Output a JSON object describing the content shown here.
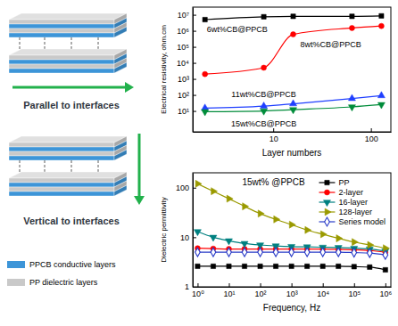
{
  "diagram": {
    "panels": [
      {
        "label": "Parallel to interfaces"
      },
      {
        "label": "Vertical to interfaces"
      }
    ],
    "legend": [
      {
        "label": "PPCB conductive layers",
        "color": "#3d95d8"
      },
      {
        "label": "PP dielectric layers",
        "color": "#c9c9c9"
      }
    ]
  },
  "chart_data": [
    {
      "type": "line",
      "x_label": "Layer numbers",
      "y_label": "Electrical resistivity, ohm.cm",
      "log": true,
      "x": [
        2,
        8,
        16,
        64,
        128
      ],
      "xlim": [
        1.5,
        160
      ],
      "ylim": [
        0.5,
        30000000
      ],
      "xticks": [
        10,
        100
      ],
      "yticks": [
        {
          "value": 10,
          "label": "10¹"
        },
        {
          "value": 100,
          "label": "10²"
        },
        {
          "value": 1000,
          "label": "10³"
        },
        {
          "value": 10000,
          "label": "10⁴"
        },
        {
          "value": 100000,
          "label": "10⁵"
        },
        {
          "value": 1000000,
          "label": "10⁶"
        },
        {
          "value": 10000000,
          "label": "10⁷"
        }
      ],
      "series": [
        {
          "name": "6wt%CB@PPCB",
          "color": "#000000",
          "marker": "square",
          "values": [
            5000000,
            7500000,
            8000000,
            8000000,
            8500000
          ]
        },
        {
          "name": "8wt%CB@PPCB",
          "color": "#ff0000",
          "marker": "circle",
          "values": [
            2000,
            5000,
            600000,
            1500000,
            2000000
          ]
        },
        {
          "name": "11wt%CB@PPCB",
          "color": "#1f3fff",
          "marker": "triangle-up",
          "values": [
            15,
            20,
            28,
            60,
            90
          ]
        },
        {
          "name": "15wt%CB@PPCB",
          "color": "#008c3a",
          "marker": "triangle-down",
          "values": [
            9,
            10,
            12,
            18,
            25
          ]
        }
      ]
    },
    {
      "type": "line",
      "title": "15wt% @PPCB",
      "x_label": "Frequency, Hz",
      "y_label": "Dielectric permittivity",
      "log": true,
      "legend": "top-right",
      "x": [
        1,
        3.16,
        10,
        31.6,
        100,
        316,
        1000,
        3160,
        10000,
        31600,
        100000,
        316000,
        1000000
      ],
      "xlim": [
        0.7,
        1500000
      ],
      "ylim": [
        1,
        200
      ],
      "xticks": [
        {
          "value": 1,
          "label": "10⁰"
        },
        {
          "value": 10,
          "label": "10¹"
        },
        {
          "value": 100,
          "label": "10²"
        },
        {
          "value": 1000,
          "label": "10³"
        },
        {
          "value": 10000,
          "label": "10⁴"
        },
        {
          "value": 100000,
          "label": "10⁵"
        },
        {
          "value": 1000000,
          "label": "10⁶"
        }
      ],
      "yticks": [
        1,
        10,
        100
      ],
      "series": [
        {
          "name": "PP",
          "color": "#000000",
          "marker": "square",
          "values": [
            2.6,
            2.6,
            2.6,
            2.6,
            2.6,
            2.6,
            2.6,
            2.6,
            2.6,
            2.6,
            2.55,
            2.5,
            2.2
          ]
        },
        {
          "name": "2-layer",
          "color": "#ff0000",
          "marker": "circle",
          "values": [
            6,
            5.9,
            5.8,
            5.8,
            5.8,
            5.8,
            5.8,
            5.8,
            5.8,
            5.7,
            5.6,
            5.4,
            5
          ]
        },
        {
          "name": "16-layer",
          "color": "#008080",
          "marker": "triangle-down",
          "values": [
            13,
            10,
            8.5,
            7.5,
            7,
            6.7,
            6.5,
            6.4,
            6.3,
            6.2,
            6,
            5.8,
            5.3
          ]
        },
        {
          "name": "128-layer",
          "color": "#9a9a00",
          "marker": "triangle-right",
          "values": [
            120,
            85,
            60,
            42,
            30,
            23,
            18,
            14,
            11.5,
            9.5,
            8,
            7,
            6
          ]
        },
        {
          "name": "Series model",
          "color": "#2a3cc8",
          "marker": "diamond-open",
          "values": [
            5,
            5,
            5,
            5,
            5,
            5,
            5,
            5,
            5,
            5,
            4.9,
            4.8,
            4.4
          ]
        }
      ]
    }
  ]
}
